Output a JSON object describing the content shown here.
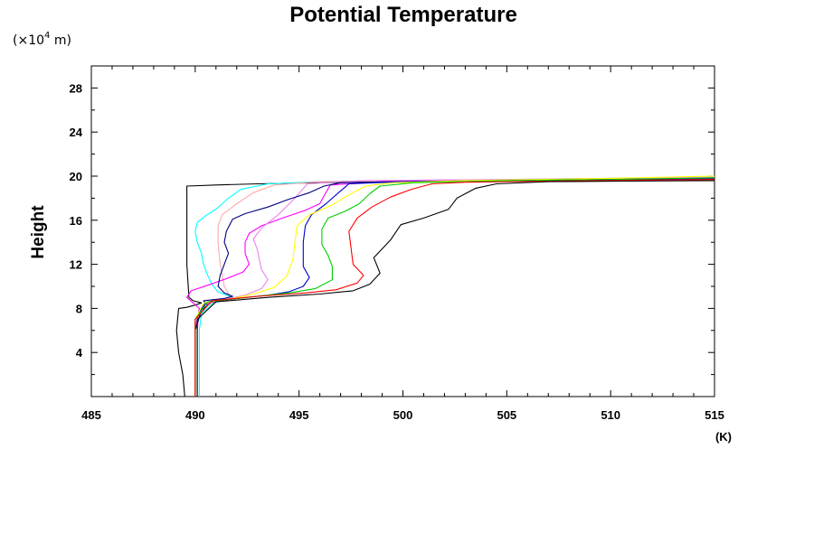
{
  "chart_data": {
    "type": "line",
    "title": "Potential Temperature",
    "xlabel": "",
    "ylabel": "Height",
    "x_unit": "(K)",
    "y_unit_prefix": "(×10",
    "y_unit_exponent": "4",
    "y_unit_suffix": " m)",
    "xlim": [
      485,
      515
    ],
    "ylim": [
      0,
      30
    ],
    "x_ticks": [
      485,
      490,
      495,
      500,
      505,
      510,
      515
    ],
    "x_tick_labels": [
      "485",
      "490",
      "495",
      "500",
      "505",
      "510",
      "515"
    ],
    "y_ticks": [
      4,
      8,
      12,
      16,
      20,
      24,
      28
    ],
    "y_tick_labels": [
      "4",
      "8",
      "12",
      "16",
      "20",
      "24",
      "28"
    ],
    "x_minor_step": 1,
    "y_minor_step": 2,
    "grid": false,
    "legend": "none",
    "series": [
      {
        "color": "#000000",
        "points": [
          [
            489.5,
            0
          ],
          [
            489.4,
            2
          ],
          [
            489.2,
            4
          ],
          [
            489.1,
            6
          ],
          [
            489.2,
            8
          ],
          [
            489.6,
            8.1
          ],
          [
            490.0,
            8.3
          ],
          [
            490.3,
            8.5
          ],
          [
            489.9,
            8.7
          ],
          [
            489.7,
            9
          ],
          [
            489.6,
            12
          ],
          [
            489.6,
            16
          ],
          [
            489.6,
            18
          ],
          [
            489.6,
            19.1
          ],
          [
            491,
            19.2
          ],
          [
            493,
            19.3
          ],
          [
            496,
            19.4
          ],
          [
            500,
            19.5
          ],
          [
            505,
            19.6
          ],
          [
            510,
            19.65
          ],
          [
            515,
            19.7
          ]
        ]
      },
      {
        "color": "#00ffff",
        "points": [
          [
            490.2,
            0
          ],
          [
            490.2,
            4
          ],
          [
            490.2,
            6
          ],
          [
            490.3,
            7.5
          ],
          [
            490.8,
            8.4
          ],
          [
            491.4,
            8.8
          ],
          [
            491.8,
            9
          ],
          [
            491.1,
            9.5
          ],
          [
            490.8,
            10.2
          ],
          [
            490.6,
            11
          ],
          [
            490.4,
            12
          ],
          [
            490.3,
            13
          ],
          [
            490.1,
            14
          ],
          [
            490.0,
            15
          ],
          [
            490.1,
            15.8
          ],
          [
            490.5,
            16.4
          ],
          [
            491.0,
            17
          ],
          [
            491.6,
            18
          ],
          [
            492.2,
            18.8
          ],
          [
            493.5,
            19.3
          ],
          [
            496,
            19.5
          ],
          [
            500,
            19.6
          ],
          [
            505,
            19.7
          ],
          [
            510,
            19.8
          ],
          [
            515,
            19.9
          ]
        ]
      },
      {
        "color": "#ffaaaa",
        "points": [
          [
            490.1,
            0
          ],
          [
            490.1,
            6
          ],
          [
            490.2,
            7.8
          ],
          [
            490.9,
            8.6
          ],
          [
            491.7,
            9
          ],
          [
            491.4,
            10
          ],
          [
            491.2,
            12
          ],
          [
            491.1,
            14
          ],
          [
            491.1,
            15.5
          ],
          [
            491.3,
            16.5
          ],
          [
            492.0,
            17.5
          ],
          [
            492.8,
            18.5
          ],
          [
            493.8,
            19.2
          ],
          [
            496,
            19.5
          ],
          [
            500,
            19.6
          ],
          [
            505,
            19.7
          ],
          [
            510,
            19.8
          ],
          [
            515,
            19.9
          ]
        ]
      },
      {
        "color": "#ff00ff",
        "points": [
          [
            490.0,
            0
          ],
          [
            490.0,
            6
          ],
          [
            490.2,
            8
          ],
          [
            489.9,
            8.5
          ],
          [
            489.6,
            9
          ],
          [
            489.8,
            9.6
          ],
          [
            490.6,
            10.1
          ],
          [
            491.5,
            10.7
          ],
          [
            492.3,
            11.3
          ],
          [
            492.6,
            12
          ],
          [
            492.4,
            13
          ],
          [
            492.4,
            14
          ],
          [
            492.6,
            14.8
          ],
          [
            493.2,
            15.5
          ],
          [
            494.2,
            16.2
          ],
          [
            495.3,
            16.9
          ],
          [
            496.0,
            17.5
          ],
          [
            496.2,
            18.2
          ],
          [
            496.5,
            19.2
          ],
          [
            499,
            19.5
          ],
          [
            505,
            19.65
          ],
          [
            510,
            19.75
          ],
          [
            515,
            19.85
          ]
        ]
      },
      {
        "color": "#ee82ee",
        "points": [
          [
            490.0,
            0
          ],
          [
            490.0,
            7
          ],
          [
            490.4,
            8.3
          ],
          [
            491.4,
            8.8
          ],
          [
            492.4,
            9.2
          ],
          [
            493.2,
            9.8
          ],
          [
            493.5,
            10.6
          ],
          [
            493.2,
            11.5
          ],
          [
            493.1,
            12.3
          ],
          [
            493.0,
            13.3
          ],
          [
            492.8,
            14.3
          ],
          [
            493.2,
            15.3
          ],
          [
            494.0,
            16.5
          ],
          [
            494.8,
            18
          ],
          [
            495.4,
            19.3
          ],
          [
            498,
            19.6
          ],
          [
            505,
            19.7
          ],
          [
            510,
            19.8
          ],
          [
            515,
            19.9
          ]
        ]
      },
      {
        "color": "#000080",
        "points": [
          [
            490.0,
            0
          ],
          [
            490.0,
            6
          ],
          [
            490.3,
            7.8
          ],
          [
            490.6,
            8.3
          ],
          [
            490.4,
            8.7
          ],
          [
            491.4,
            8.9
          ],
          [
            491.8,
            9.1
          ],
          [
            491.4,
            9.4
          ],
          [
            491.1,
            10
          ],
          [
            491.2,
            11
          ],
          [
            491.4,
            12
          ],
          [
            491.6,
            13
          ],
          [
            491.4,
            14
          ],
          [
            491.5,
            15
          ],
          [
            491.8,
            16.1
          ],
          [
            492.4,
            16.6
          ],
          [
            493.5,
            17.2
          ],
          [
            494.5,
            17.9
          ],
          [
            495.5,
            18.5
          ],
          [
            496.2,
            19.1
          ],
          [
            497,
            19.4
          ],
          [
            500,
            19.5
          ],
          [
            505,
            19.6
          ],
          [
            510,
            19.7
          ],
          [
            515,
            19.8
          ]
        ]
      },
      {
        "color": "#0000cd",
        "points": [
          [
            490.0,
            0
          ],
          [
            490.0,
            7
          ],
          [
            490.5,
            8.5
          ],
          [
            492,
            8.9
          ],
          [
            493.5,
            9.2
          ],
          [
            494.5,
            9.5
          ],
          [
            495.2,
            10
          ],
          [
            495.5,
            10.8
          ],
          [
            495.2,
            11.8
          ],
          [
            495.2,
            12.8
          ],
          [
            495.2,
            14
          ],
          [
            495.3,
            15.5
          ],
          [
            495.6,
            16.5
          ],
          [
            496.3,
            17.5
          ],
          [
            496.9,
            18.5
          ],
          [
            497.4,
            19.3
          ],
          [
            500,
            19.5
          ],
          [
            505,
            19.6
          ],
          [
            510,
            19.7
          ],
          [
            515,
            19.8
          ]
        ]
      },
      {
        "color": "#ffff00",
        "points": [
          [
            490.0,
            0
          ],
          [
            490.0,
            7
          ],
          [
            490.4,
            8.5
          ],
          [
            491.8,
            8.9
          ],
          [
            492.8,
            9.3
          ],
          [
            493.8,
            9.9
          ],
          [
            494.4,
            10.9
          ],
          [
            494.7,
            12.4
          ],
          [
            494.8,
            14
          ],
          [
            494.9,
            15.5
          ],
          [
            495.5,
            16.5
          ],
          [
            496.6,
            17.4
          ],
          [
            497.4,
            18.3
          ],
          [
            498.2,
            19.1
          ],
          [
            499.5,
            19.4
          ],
          [
            503,
            19.6
          ],
          [
            510,
            19.8
          ],
          [
            515,
            20.0
          ]
        ]
      },
      {
        "color": "#00cc00",
        "points": [
          [
            490.0,
            0
          ],
          [
            490.0,
            7
          ],
          [
            490.6,
            8.6
          ],
          [
            492.5,
            9
          ],
          [
            494.5,
            9.4
          ],
          [
            495.8,
            9.8
          ],
          [
            496.6,
            10.6
          ],
          [
            496.6,
            11.8
          ],
          [
            496.4,
            12.8
          ],
          [
            496.1,
            13.8
          ],
          [
            496.1,
            15.2
          ],
          [
            496.4,
            16.2
          ],
          [
            497.2,
            16.8
          ],
          [
            497.9,
            17.5
          ],
          [
            498.4,
            18.4
          ],
          [
            498.9,
            19.1
          ],
          [
            500.5,
            19.4
          ],
          [
            505,
            19.6
          ],
          [
            510,
            19.7
          ],
          [
            515,
            19.85
          ]
        ]
      },
      {
        "color": "#ff0000",
        "points": [
          [
            490.0,
            0
          ],
          [
            490.0,
            7
          ],
          [
            490.8,
            8.7
          ],
          [
            493,
            9.1
          ],
          [
            495.3,
            9.4
          ],
          [
            496.8,
            9.7
          ],
          [
            497.8,
            10.3
          ],
          [
            498.1,
            11
          ],
          [
            497.6,
            12
          ],
          [
            497.5,
            13.5
          ],
          [
            497.4,
            15
          ],
          [
            497.8,
            16.2
          ],
          [
            498.5,
            17.2
          ],
          [
            499.4,
            18.1
          ],
          [
            500.4,
            18.8
          ],
          [
            501.4,
            19.3
          ],
          [
            503,
            19.45
          ],
          [
            507,
            19.55
          ],
          [
            515,
            19.7
          ]
        ]
      },
      {
        "color": "#000000",
        "points": [
          [
            490.1,
            0
          ],
          [
            490.1,
            7
          ],
          [
            491,
            8.6
          ],
          [
            493.5,
            9
          ],
          [
            496,
            9.3
          ],
          [
            497.6,
            9.6
          ],
          [
            498.4,
            10.2
          ],
          [
            498.9,
            11.2
          ],
          [
            498.6,
            12.6
          ],
          [
            499.4,
            14.2
          ],
          [
            499.9,
            15.6
          ],
          [
            501,
            16.2
          ],
          [
            502.2,
            17
          ],
          [
            502.6,
            18
          ],
          [
            503.5,
            18.9
          ],
          [
            504.5,
            19.3
          ],
          [
            507,
            19.5
          ],
          [
            511,
            19.55
          ],
          [
            515,
            19.6
          ]
        ]
      }
    ]
  }
}
